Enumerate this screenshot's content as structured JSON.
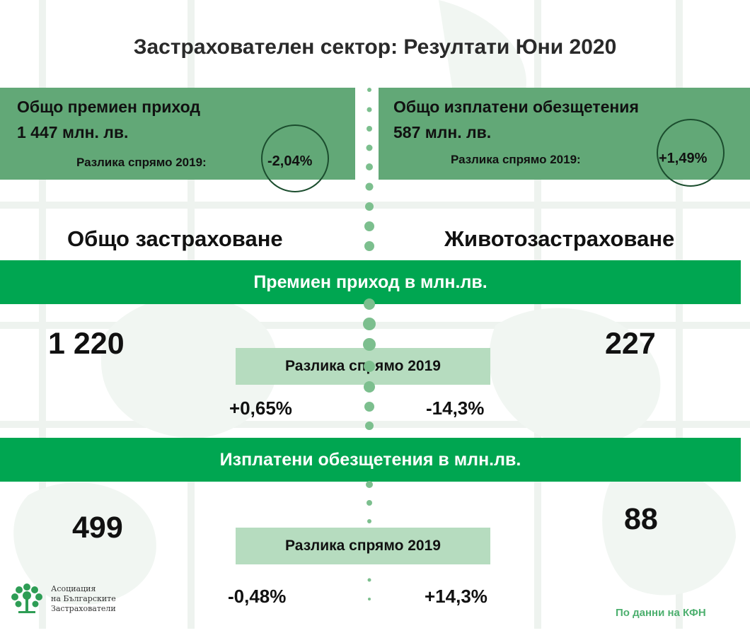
{
  "title": "Застрахователен сектор: Резултати Юни 2020",
  "left_card": {
    "heading": "Общо премиен приход",
    "value": "1 447 млн. лв.",
    "diff_label": "Разлика спрямо 2019:",
    "diff_value": "-2,04%"
  },
  "right_card": {
    "heading": "Общо изплатени обезщетения",
    "value": "587  млн. лв.",
    "diff_label": "Разлика спрямо 2019:",
    "diff_value": "+1,49%"
  },
  "columns": {
    "left": "Общо застраховане",
    "right": "Животозастраховане"
  },
  "premiums": {
    "band": "Премиен приход в млн.лв.",
    "left_value": "1 220",
    "right_value": "227",
    "diff_label": "Разлика спрямо 2019",
    "left_diff": "+0,65%",
    "right_diff": "-14,3%"
  },
  "claims": {
    "band": "Изплатени обезщетения в млн.лв.",
    "left_value": "499",
    "right_value": "88",
    "diff_label": "Разлика спрямо 2019",
    "left_diff": "-0,48%",
    "right_diff": "+14,3%"
  },
  "logo": {
    "line1": "Асоциация",
    "line2": "на Българските",
    "line3": "Застрахователи"
  },
  "source": "По данни на КФН",
  "colors": {
    "card_green": "#62a877",
    "band_green": "#00a651",
    "pill_green": "#b6dcbf",
    "dot_green": "#7cbf8e"
  }
}
